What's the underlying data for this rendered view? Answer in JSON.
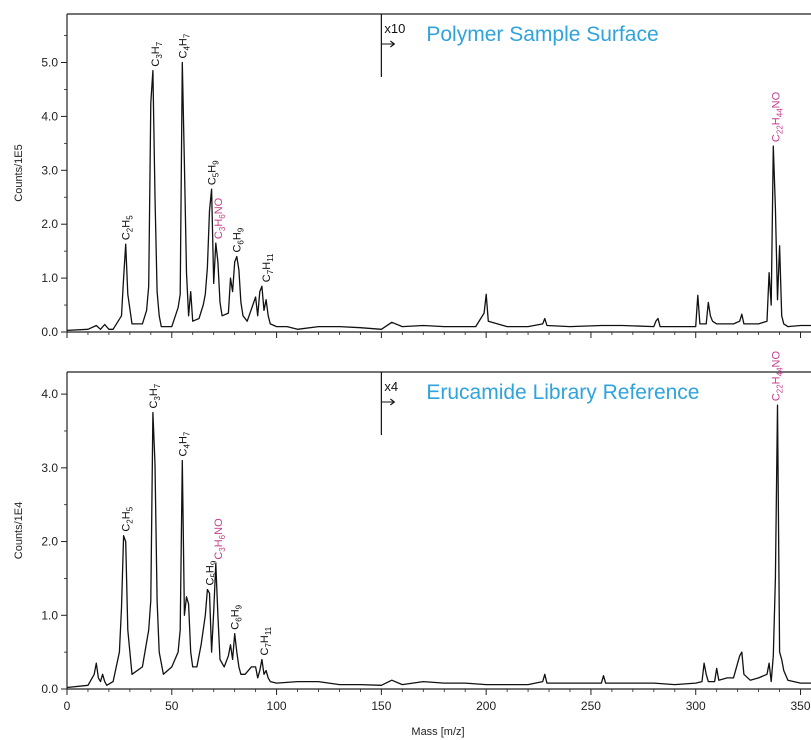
{
  "chart_data": [
    {
      "type": "line",
      "title": "Polymer Sample Surface",
      "ylabel": "Counts/1E5",
      "xlim": [
        0,
        355
      ],
      "ylim": [
        0,
        5.9
      ],
      "x_ticks": [
        0,
        50,
        100,
        150,
        200,
        250,
        300,
        350
      ],
      "x_tick_labels": [
        "",
        "",
        "",
        "",
        "",
        "",
        "",
        ""
      ],
      "y_ticks": [
        0,
        1,
        2,
        3,
        4,
        5
      ],
      "y_tick_labels": [
        "0.0",
        "1.0",
        "2.0",
        "3.0",
        "4.0",
        "5.0"
      ],
      "scale_marker": {
        "text": "x10",
        "x": 150
      },
      "series": [
        {
          "x": [
            0,
            10,
            14,
            16,
            18,
            20,
            22,
            26,
            27,
            28,
            29,
            31,
            36,
            38,
            39,
            40,
            41,
            42,
            43,
            44,
            45,
            50,
            53,
            54,
            55,
            56,
            57,
            58,
            59,
            60,
            63,
            65,
            66,
            67,
            68,
            69,
            70,
            71,
            72,
            73,
            74,
            77,
            78,
            79,
            80,
            81,
            82,
            83,
            84,
            86,
            90,
            91,
            92,
            93,
            94,
            95,
            96,
            97,
            100,
            105,
            110,
            120,
            130,
            140,
            150,
            155,
            160,
            170,
            180,
            195,
            199,
            200,
            201,
            210,
            220,
            227,
            228,
            229,
            240,
            255,
            265,
            280,
            281,
            282,
            283,
            290,
            295,
            300,
            301,
            302,
            305,
            306,
            307,
            308,
            310,
            318,
            321,
            322,
            323,
            330,
            334,
            335,
            336,
            337,
            338,
            339,
            340,
            341,
            342,
            344,
            350,
            355
          ],
          "y": [
            0.03,
            0.05,
            0.12,
            0.05,
            0.14,
            0.05,
            0.05,
            0.3,
            1.0,
            1.63,
            0.7,
            0.15,
            0.15,
            0.4,
            0.85,
            4.25,
            4.85,
            2.5,
            0.75,
            0.3,
            0.1,
            0.1,
            0.45,
            0.7,
            5.0,
            3.12,
            1.1,
            0.3,
            0.75,
            0.2,
            0.25,
            0.5,
            0.7,
            1.2,
            2.25,
            2.65,
            0.9,
            1.65,
            1.3,
            0.55,
            0.3,
            0.35,
            1.0,
            0.75,
            1.3,
            1.4,
            1.15,
            0.55,
            0.3,
            0.2,
            0.65,
            0.3,
            0.75,
            0.85,
            0.4,
            0.6,
            0.3,
            0.15,
            0.1,
            0.1,
            0.05,
            0.1,
            0.1,
            0.08,
            0.05,
            0.18,
            0.1,
            0.12,
            0.1,
            0.1,
            0.35,
            0.7,
            0.2,
            0.1,
            0.1,
            0.15,
            0.25,
            0.12,
            0.1,
            0.12,
            0.12,
            0.1,
            0.2,
            0.25,
            0.1,
            0.1,
            0.1,
            0.1,
            0.68,
            0.15,
            0.15,
            0.55,
            0.3,
            0.2,
            0.15,
            0.15,
            0.2,
            0.33,
            0.15,
            0.15,
            0.2,
            1.1,
            0.5,
            3.45,
            2.3,
            0.6,
            1.6,
            0.3,
            0.15,
            0.1,
            0.12,
            0.12
          ]
        }
      ],
      "annotations": [
        {
          "text": "C2H5",
          "base": "C",
          "parts": [
            [
              "2",
              "sub"
            ],
            [
              "H",
              ""
            ],
            [
              "5",
              "sub"
            ]
          ],
          "x": 28,
          "y": 1.63,
          "color": "#111111"
        },
        {
          "text": "C3H7",
          "base": "C",
          "parts": [
            [
              "3",
              "sub"
            ],
            [
              "H",
              ""
            ],
            [
              "7",
              "sub"
            ]
          ],
          "x": 42,
          "y": 4.85,
          "color": "#111111"
        },
        {
          "text": "C4H7",
          "base": "C",
          "parts": [
            [
              "4",
              "sub"
            ],
            [
              "H",
              ""
            ],
            [
              "7",
              "sub"
            ]
          ],
          "x": 55,
          "y": 5.0,
          "color": "#111111"
        },
        {
          "text": "C5H9",
          "base": "C",
          "parts": [
            [
              "5",
              "sub"
            ],
            [
              "H",
              ""
            ],
            [
              "9",
              "sub"
            ]
          ],
          "x": 69,
          "y": 2.65,
          "color": "#111111"
        },
        {
          "text": "C3H6NO",
          "base": "C",
          "parts": [
            [
              "3",
              "sub"
            ],
            [
              "H",
              ""
            ],
            [
              "6",
              "sub"
            ],
            [
              "NO",
              ""
            ]
          ],
          "x": 72,
          "y": 1.65,
          "color": "#c2418f"
        },
        {
          "text": "C6H9",
          "base": "C",
          "parts": [
            [
              "6",
              "sub"
            ],
            [
              "H",
              ""
            ],
            [
              "9",
              "sub"
            ]
          ],
          "x": 81,
          "y": 1.4,
          "color": "#111111"
        },
        {
          "text": "C7H11",
          "base": "C",
          "parts": [
            [
              "7",
              "sub"
            ],
            [
              "H",
              ""
            ],
            [
              "11",
              "sub"
            ]
          ],
          "x": 95,
          "y": 0.85,
          "color": "#111111"
        },
        {
          "text": "C22H44NO",
          "base": "C",
          "parts": [
            [
              "22",
              "sub"
            ],
            [
              "H",
              ""
            ],
            [
              "44",
              "sub"
            ],
            [
              "NO",
              ""
            ]
          ],
          "x": 338,
          "y": 3.45,
          "color": "#c2418f"
        }
      ]
    },
    {
      "type": "line",
      "title": "Erucamide Library Reference",
      "xlabel": "Mass [m/z]",
      "ylabel": "Counts/1E4",
      "xlim": [
        0,
        355
      ],
      "ylim": [
        0,
        4.3
      ],
      "x_ticks": [
        0,
        50,
        100,
        150,
        200,
        250,
        300,
        350
      ],
      "x_tick_labels": [
        "0",
        "50",
        "100",
        "150",
        "200",
        "250",
        "300",
        "350"
      ],
      "y_ticks": [
        0,
        1,
        2,
        3,
        4
      ],
      "y_tick_labels": [
        "0.0",
        "1.0",
        "2.0",
        "3.0",
        "4.0"
      ],
      "scale_marker": {
        "text": "x4",
        "x": 150
      },
      "series": [
        {
          "x": [
            0,
            10,
            13,
            14,
            15,
            16,
            17,
            18,
            19,
            22,
            25,
            26,
            27,
            28,
            29,
            31,
            36,
            39,
            40,
            41,
            42,
            43,
            44,
            46,
            50,
            53,
            54,
            55,
            56,
            57,
            58,
            59,
            60,
            62,
            64,
            66,
            67,
            68,
            69,
            70,
            71,
            72,
            73,
            75,
            77,
            78,
            79,
            80,
            81,
            82,
            83,
            85,
            88,
            90,
            91,
            92,
            93,
            94,
            95,
            96,
            97,
            100,
            110,
            120,
            130,
            140,
            150,
            155,
            160,
            170,
            180,
            190,
            200,
            210,
            220,
            227,
            228,
            229,
            240,
            255,
            256,
            257,
            270,
            280,
            290,
            300,
            303,
            304,
            305,
            306,
            309,
            310,
            311,
            315,
            318,
            320,
            321,
            322,
            323,
            326,
            330,
            334,
            335,
            336,
            337,
            338,
            339,
            340,
            341,
            342,
            344,
            350,
            355
          ],
          "y": [
            0.02,
            0.05,
            0.2,
            0.35,
            0.15,
            0.1,
            0.2,
            0.1,
            0.05,
            0.1,
            0.5,
            1.1,
            2.08,
            2.0,
            0.8,
            0.2,
            0.3,
            0.8,
            1.2,
            3.75,
            3.05,
            1.2,
            0.5,
            0.2,
            0.3,
            0.5,
            0.8,
            3.1,
            1.0,
            1.25,
            1.15,
            0.5,
            0.3,
            0.3,
            0.6,
            1.0,
            1.35,
            1.3,
            0.5,
            1.05,
            1.7,
            1.0,
            0.4,
            0.3,
            0.45,
            0.6,
            0.4,
            0.75,
            0.5,
            0.3,
            0.2,
            0.2,
            0.3,
            0.3,
            0.15,
            0.25,
            0.4,
            0.2,
            0.25,
            0.15,
            0.1,
            0.08,
            0.1,
            0.1,
            0.06,
            0.06,
            0.05,
            0.12,
            0.06,
            0.1,
            0.08,
            0.08,
            0.06,
            0.06,
            0.06,
            0.1,
            0.2,
            0.08,
            0.08,
            0.08,
            0.18,
            0.08,
            0.08,
            0.08,
            0.06,
            0.08,
            0.1,
            0.35,
            0.2,
            0.1,
            0.1,
            0.28,
            0.12,
            0.15,
            0.15,
            0.35,
            0.45,
            0.5,
            0.2,
            0.12,
            0.15,
            0.2,
            0.35,
            0.1,
            0.45,
            1.5,
            3.85,
            0.5,
            0.4,
            0.25,
            0.12,
            0.08,
            0.08
          ]
        }
      ],
      "annotations": [
        {
          "text": "C2H5",
          "base": "C",
          "parts": [
            [
              "2",
              "sub"
            ],
            [
              "H",
              ""
            ],
            [
              "5",
              "sub"
            ]
          ],
          "x": 28,
          "y": 2.08,
          "color": "#111111"
        },
        {
          "text": "C3H7",
          "base": "C",
          "parts": [
            [
              "3",
              "sub"
            ],
            [
              "H",
              ""
            ],
            [
              "7",
              "sub"
            ]
          ],
          "x": 41,
          "y": 3.75,
          "color": "#111111"
        },
        {
          "text": "C4H7",
          "base": "C",
          "parts": [
            [
              "4",
              "sub"
            ],
            [
              "H",
              ""
            ],
            [
              "7",
              "sub"
            ]
          ],
          "x": 55,
          "y": 3.1,
          "color": "#111111"
        },
        {
          "text": "C5H9",
          "base": "C",
          "parts": [
            [
              "5",
              "sub"
            ],
            [
              "H",
              ""
            ],
            [
              "9",
              "sub"
            ]
          ],
          "x": 68,
          "y": 1.35,
          "color": "#111111"
        },
        {
          "text": "C3H6NO",
          "base": "C",
          "parts": [
            [
              "3",
              "sub"
            ],
            [
              "H",
              ""
            ],
            [
              "6",
              "sub"
            ],
            [
              "NO",
              ""
            ]
          ],
          "x": 72,
          "y": 1.7,
          "color": "#c2418f"
        },
        {
          "text": "C6H9",
          "base": "C",
          "parts": [
            [
              "6",
              "sub"
            ],
            [
              "H",
              ""
            ],
            [
              "9",
              "sub"
            ]
          ],
          "x": 80,
          "y": 0.75,
          "color": "#111111"
        },
        {
          "text": "C7H11",
          "base": "C",
          "parts": [
            [
              "7",
              "sub"
            ],
            [
              "H",
              ""
            ],
            [
              "11",
              "sub"
            ]
          ],
          "x": 94,
          "y": 0.4,
          "color": "#111111"
        },
        {
          "text": "C22H44NO",
          "base": "C",
          "parts": [
            [
              "22",
              "sub"
            ],
            [
              "H",
              ""
            ],
            [
              "44",
              "sub"
            ],
            [
              "NO",
              ""
            ]
          ],
          "x": 338,
          "y": 3.85,
          "color": "#c2418f"
        }
      ]
    }
  ],
  "colors": {
    "line": "#111111",
    "title": "#2fa3dc",
    "highlight_label": "#c2418f",
    "black_label": "#111111"
  }
}
